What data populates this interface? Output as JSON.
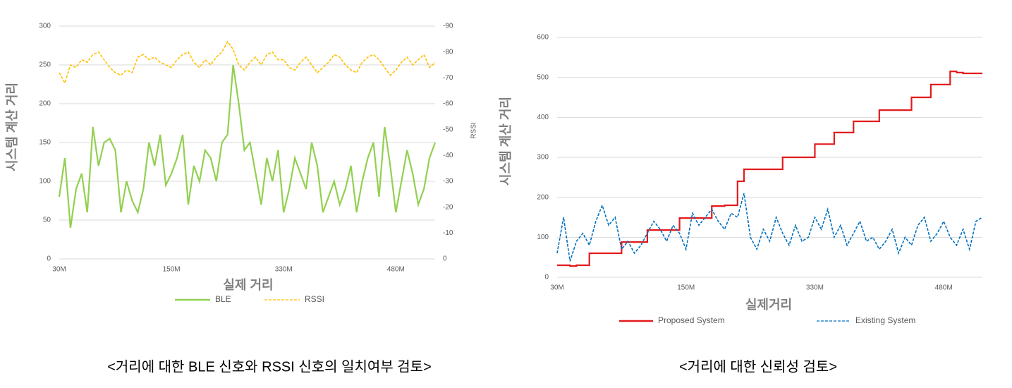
{
  "chart_data": [
    {
      "type": "line",
      "y_label": "시스템 계산 거리",
      "x_label": "실제 거리",
      "y2_label": "RSSI",
      "caption": "<거리에 대한 BLE 신호와 RSSI 신호의 일치여부 검토>",
      "categories": [
        "30M",
        null,
        null,
        null,
        null,
        null,
        null,
        null,
        null,
        null,
        null,
        null,
        null,
        null,
        null,
        null,
        null,
        null,
        null,
        null,
        "150M",
        null,
        null,
        null,
        null,
        null,
        null,
        null,
        null,
        null,
        null,
        null,
        null,
        null,
        null,
        null,
        null,
        null,
        null,
        null,
        "330M",
        null,
        null,
        null,
        null,
        null,
        null,
        null,
        null,
        null,
        null,
        null,
        null,
        null,
        null,
        null,
        null,
        null,
        null,
        null,
        "480M",
        null,
        null,
        null,
        null,
        null,
        null,
        null
      ],
      "ylim": [
        0,
        300
      ],
      "yticks": [
        0,
        50,
        100,
        150,
        200,
        250,
        300
      ],
      "y2lim": [
        0,
        -90
      ],
      "y2ticks": [
        0,
        -10,
        -20,
        -30,
        -40,
        -50,
        -60,
        -70,
        -80,
        -90
      ],
      "grid": true,
      "legend": "bottom",
      "series": [
        {
          "name": "BLE",
          "color": "#92d050",
          "style": "solid",
          "values": [
            80,
            130,
            40,
            90,
            110,
            60,
            170,
            120,
            150,
            155,
            140,
            60,
            100,
            75,
            60,
            90,
            150,
            120,
            160,
            95,
            110,
            130,
            160,
            70,
            120,
            100,
            140,
            130,
            100,
            150,
            160,
            250,
            200,
            140,
            150,
            110,
            70,
            130,
            100,
            140,
            60,
            90,
            130,
            110,
            90,
            150,
            120,
            60,
            80,
            100,
            70,
            90,
            120,
            60,
            100,
            130,
            150,
            80,
            170,
            120,
            60,
            100,
            140,
            110,
            70,
            90,
            130,
            150
          ]
        },
        {
          "name": "RSSI",
          "color": "#ffc000",
          "style": "dashed",
          "axis": "y2",
          "values": [
            -72,
            -68,
            -75,
            -74,
            -77,
            -76,
            -79,
            -80,
            -77,
            -74,
            -72,
            -71,
            -73,
            -72,
            -78,
            -79,
            -77,
            -78,
            -76,
            -75,
            -74,
            -77,
            -79,
            -80,
            -76,
            -74,
            -77,
            -75,
            -78,
            -80,
            -84,
            -81,
            -75,
            -73,
            -76,
            -78,
            -75,
            -79,
            -80,
            -77,
            -77,
            -74,
            -73,
            -76,
            -78,
            -75,
            -72,
            -74,
            -76,
            -79,
            -78,
            -75,
            -73,
            -72,
            -76,
            -78,
            -79,
            -77,
            -74,
            -71,
            -73,
            -76,
            -78,
            -75,
            -77,
            -79,
            -74,
            -76
          ]
        }
      ]
    },
    {
      "type": "line",
      "y_label": "시스템 계산 거리",
      "x_label": "실제거리",
      "caption": "<거리에 대한 신뢰성 검토>",
      "categories": [
        "30M",
        null,
        null,
        null,
        null,
        null,
        null,
        null,
        null,
        null,
        null,
        null,
        null,
        null,
        null,
        null,
        null,
        null,
        null,
        null,
        "150M",
        null,
        null,
        null,
        null,
        null,
        null,
        null,
        null,
        null,
        null,
        null,
        null,
        null,
        null,
        null,
        null,
        null,
        null,
        null,
        "330M",
        null,
        null,
        null,
        null,
        null,
        null,
        null,
        null,
        null,
        null,
        null,
        null,
        null,
        null,
        null,
        null,
        null,
        null,
        null,
        "480M",
        null,
        null,
        null,
        null,
        null,
        null
      ],
      "ylim": [
        0,
        600
      ],
      "yticks": [
        0,
        100,
        200,
        300,
        400,
        500,
        600
      ],
      "grid": true,
      "legend": "bottom",
      "series": [
        {
          "name": "Proposed System",
          "color": "#e31a1c",
          "style": "solid",
          "step": true,
          "values": [
            30,
            30,
            28,
            30,
            30,
            60,
            60,
            60,
            60,
            60,
            88,
            88,
            88,
            88,
            118,
            118,
            118,
            118,
            118,
            148,
            148,
            148,
            148,
            148,
            178,
            178,
            180,
            180,
            240,
            270,
            270,
            270,
            270,
            270,
            270,
            300,
            300,
            300,
            300,
            300,
            333,
            333,
            333,
            362,
            362,
            362,
            390,
            390,
            390,
            390,
            418,
            418,
            418,
            418,
            418,
            450,
            450,
            450,
            482,
            482,
            482,
            515,
            512,
            510,
            510,
            510,
            510
          ]
        },
        {
          "name": "Existing System",
          "color": "#0070c0",
          "style": "dashed",
          "values": [
            60,
            150,
            40,
            90,
            110,
            80,
            140,
            180,
            130,
            150,
            70,
            90,
            60,
            80,
            110,
            140,
            120,
            90,
            130,
            110,
            70,
            160,
            130,
            150,
            170,
            140,
            120,
            160,
            150,
            210,
            100,
            70,
            120,
            90,
            150,
            110,
            80,
            130,
            90,
            100,
            150,
            120,
            170,
            100,
            130,
            80,
            110,
            140,
            90,
            100,
            70,
            90,
            120,
            60,
            100,
            80,
            130,
            150,
            90,
            110,
            140,
            100,
            80,
            120,
            70,
            140,
            150
          ]
        }
      ]
    }
  ]
}
